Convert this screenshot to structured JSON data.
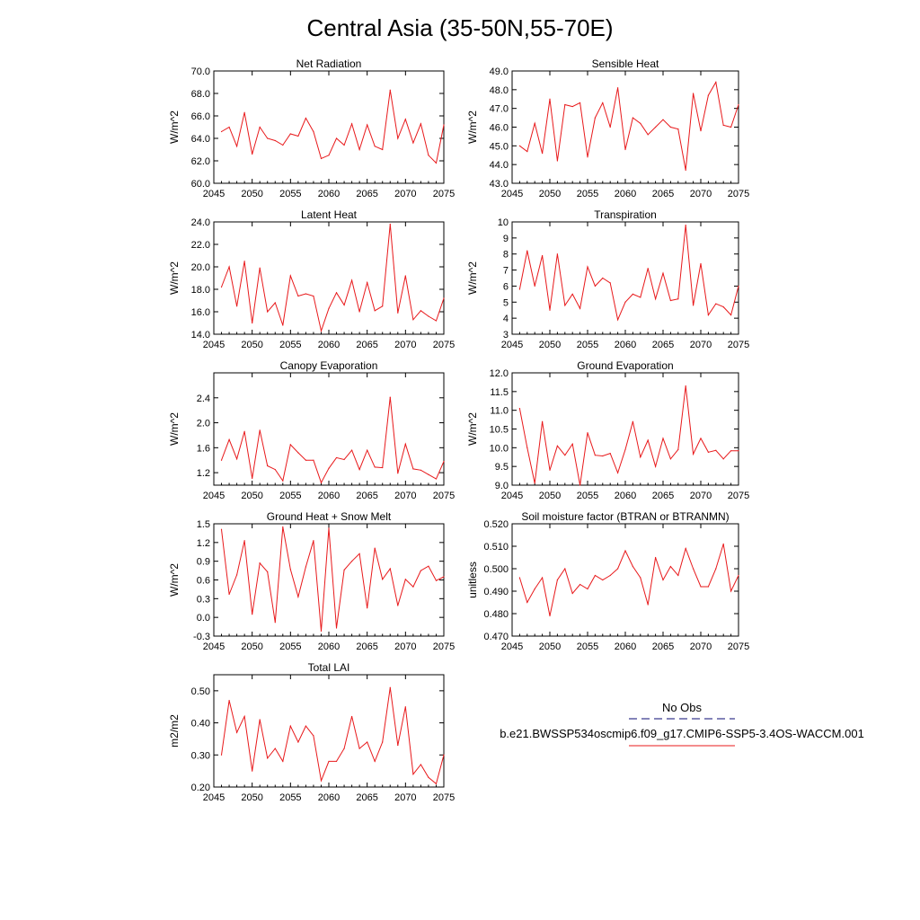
{
  "figure": {
    "title": "Central Asia (35-50N,55-70E)",
    "legend": {
      "obs_label": "No Obs",
      "obs_color": "#3b3b8f",
      "model_label": "b.e21.BWSSP534oscmip6.f09_g17.CMIP6-SSP5-3.4OS-WACCM.001",
      "model_color": "#e8191b"
    },
    "line_color": "#e8191b"
  },
  "chart_data": [
    {
      "type": "line",
      "title": "Net Radiation",
      "ylabel": "W/m^2",
      "xlim": [
        2045,
        2075
      ],
      "ylim": [
        60.0,
        70.0
      ],
      "xticks": [
        "2045",
        "2050",
        "2055",
        "2060",
        "2065",
        "2070",
        "2075"
      ],
      "yticks": [
        "60.0",
        "62.0",
        "64.0",
        "66.0",
        "68.0",
        "70.0"
      ],
      "x": [
        2046,
        2047,
        2048,
        2049,
        2050,
        2051,
        2052,
        2053,
        2054,
        2055,
        2056,
        2057,
        2058,
        2059,
        2060,
        2061,
        2062,
        2063,
        2064,
        2065,
        2066,
        2067,
        2068,
        2069,
        2070,
        2071,
        2072,
        2073,
        2074,
        2075
      ],
      "values": [
        64.6,
        65.0,
        63.3,
        66.3,
        62.6,
        65.0,
        64.0,
        63.8,
        63.4,
        64.4,
        64.2,
        65.8,
        64.6,
        62.2,
        62.5,
        64.0,
        63.4,
        65.3,
        63.0,
        65.2,
        63.3,
        63.0,
        68.3,
        64.0,
        65.7,
        63.6,
        65.3,
        62.5,
        61.8,
        65.2
      ]
    },
    {
      "type": "line",
      "title": "Sensible Heat",
      "ylabel": "W/m^2",
      "xlim": [
        2045,
        2075
      ],
      "ylim": [
        43.0,
        49.0
      ],
      "xticks": [
        "2045",
        "2050",
        "2055",
        "2060",
        "2065",
        "2070",
        "2075"
      ],
      "yticks": [
        "43.0",
        "44.0",
        "45.0",
        "46.0",
        "47.0",
        "48.0",
        "49.0"
      ],
      "x": [
        2046,
        2047,
        2048,
        2049,
        2050,
        2051,
        2052,
        2053,
        2054,
        2055,
        2056,
        2057,
        2058,
        2059,
        2060,
        2061,
        2062,
        2063,
        2064,
        2065,
        2066,
        2067,
        2068,
        2069,
        2070,
        2071,
        2072,
        2073,
        2074,
        2075
      ],
      "values": [
        45.0,
        44.7,
        46.2,
        44.6,
        47.5,
        44.2,
        47.2,
        47.1,
        47.3,
        44.4,
        46.5,
        47.3,
        46.0,
        48.1,
        44.8,
        46.5,
        46.2,
        45.6,
        46.0,
        46.4,
        46.0,
        45.9,
        43.7,
        47.8,
        45.8,
        47.7,
        48.4,
        46.1,
        46.0,
        47.2
      ]
    },
    {
      "type": "line",
      "title": "Latent Heat",
      "ylabel": "W/m^2",
      "xlim": [
        2045,
        2075
      ],
      "ylim": [
        14.0,
        24.0
      ],
      "xticks": [
        "2045",
        "2050",
        "2055",
        "2060",
        "2065",
        "2070",
        "2075"
      ],
      "yticks": [
        "14.0",
        "16.0",
        "18.0",
        "20.0",
        "22.0",
        "24.0"
      ],
      "x": [
        2046,
        2047,
        2048,
        2049,
        2050,
        2051,
        2052,
        2053,
        2054,
        2055,
        2056,
        2057,
        2058,
        2059,
        2060,
        2061,
        2062,
        2063,
        2064,
        2065,
        2066,
        2067,
        2068,
        2069,
        2070,
        2071,
        2072,
        2073,
        2074,
        2075
      ],
      "values": [
        18.2,
        20.0,
        16.5,
        20.5,
        15.0,
        19.9,
        16.0,
        16.8,
        14.8,
        19.2,
        17.4,
        17.6,
        17.4,
        14.3,
        16.3,
        17.7,
        16.6,
        18.8,
        16.0,
        18.6,
        16.1,
        16.5,
        23.8,
        15.9,
        19.2,
        15.3,
        16.1,
        15.6,
        15.2,
        17.2
      ]
    },
    {
      "type": "line",
      "title": "Transpiration",
      "ylabel": "W/m^2",
      "xlim": [
        2045,
        2075
      ],
      "ylim": [
        3,
        10
      ],
      "xticks": [
        "2045",
        "2050",
        "2055",
        "2060",
        "2065",
        "2070",
        "2075"
      ],
      "yticks": [
        "3",
        "4",
        "5",
        "6",
        "7",
        "8",
        "9",
        "10"
      ],
      "x": [
        2046,
        2047,
        2048,
        2049,
        2050,
        2051,
        2052,
        2053,
        2054,
        2055,
        2056,
        2057,
        2058,
        2059,
        2060,
        2061,
        2062,
        2063,
        2064,
        2065,
        2066,
        2067,
        2068,
        2069,
        2070,
        2071,
        2072,
        2073,
        2074,
        2075
      ],
      "values": [
        5.8,
        8.2,
        6.0,
        7.9,
        4.5,
        8.0,
        4.8,
        5.5,
        4.6,
        7.2,
        6.0,
        6.5,
        6.2,
        3.9,
        5.0,
        5.5,
        5.3,
        7.1,
        5.2,
        6.8,
        5.1,
        5.2,
        9.8,
        4.8,
        7.4,
        4.2,
        4.9,
        4.7,
        4.2,
        6.0
      ]
    },
    {
      "type": "line",
      "title": "Canopy Evaporation",
      "ylabel": "W/m^2",
      "xlim": [
        2045,
        2075
      ],
      "ylim": [
        1.0,
        2.8
      ],
      "xticks": [
        "2045",
        "2050",
        "2055",
        "2060",
        "2065",
        "2070",
        "2075"
      ],
      "yticks": [
        "1.2",
        "1.6",
        "2.0",
        "2.4"
      ],
      "x": [
        2046,
        2047,
        2048,
        2049,
        2050,
        2051,
        2052,
        2053,
        2054,
        2055,
        2056,
        2057,
        2058,
        2059,
        2060,
        2061,
        2062,
        2063,
        2064,
        2065,
        2066,
        2067,
        2068,
        2069,
        2070,
        2071,
        2072,
        2073,
        2074,
        2075
      ],
      "values": [
        1.4,
        1.73,
        1.42,
        1.86,
        1.11,
        1.88,
        1.31,
        1.25,
        1.07,
        1.65,
        1.52,
        1.4,
        1.4,
        1.04,
        1.27,
        1.44,
        1.41,
        1.56,
        1.25,
        1.56,
        1.29,
        1.28,
        2.41,
        1.19,
        1.66,
        1.26,
        1.24,
        1.17,
        1.1,
        1.38
      ]
    },
    {
      "type": "line",
      "title": "Ground Evaporation",
      "ylabel": "W/m^2",
      "xlim": [
        2045,
        2075
      ],
      "ylim": [
        9.0,
        12.0
      ],
      "xticks": [
        "2045",
        "2050",
        "2055",
        "2060",
        "2065",
        "2070",
        "2075"
      ],
      "yticks": [
        "9.0",
        "9.5",
        "10.0",
        "10.5",
        "11.0",
        "11.5",
        "12.0"
      ],
      "x": [
        2046,
        2047,
        2048,
        2049,
        2050,
        2051,
        2052,
        2053,
        2054,
        2055,
        2056,
        2057,
        2058,
        2059,
        2060,
        2061,
        2062,
        2063,
        2064,
        2065,
        2066,
        2067,
        2068,
        2069,
        2070,
        2071,
        2072,
        2073,
        2074,
        2075
      ],
      "values": [
        11.05,
        10.0,
        9.05,
        10.7,
        9.4,
        10.05,
        9.8,
        10.1,
        9.0,
        10.4,
        9.8,
        9.78,
        9.85,
        9.33,
        9.95,
        10.7,
        9.75,
        10.2,
        9.5,
        10.25,
        9.7,
        9.95,
        11.65,
        9.83,
        10.25,
        9.88,
        9.93,
        9.7,
        9.92,
        9.92
      ]
    },
    {
      "type": "line",
      "title": "Ground Heat + Snow Melt",
      "ylabel": "W/m^2",
      "xlim": [
        2045,
        2075
      ],
      "ylim": [
        -0.3,
        1.5
      ],
      "xticks": [
        "2045",
        "2050",
        "2055",
        "2060",
        "2065",
        "2070",
        "2075"
      ],
      "yticks": [
        "-0.3",
        "0.0",
        "0.3",
        "0.6",
        "0.9",
        "1.2",
        "1.5"
      ],
      "x": [
        2046,
        2047,
        2048,
        2049,
        2050,
        2051,
        2052,
        2053,
        2054,
        2055,
        2056,
        2057,
        2058,
        2059,
        2060,
        2061,
        2062,
        2063,
        2064,
        2065,
        2066,
        2067,
        2068,
        2069,
        2070,
        2071,
        2072,
        2073,
        2074,
        2075
      ],
      "values": [
        1.41,
        0.37,
        0.68,
        1.23,
        0.05,
        0.87,
        0.73,
        -0.08,
        1.45,
        0.77,
        0.33,
        0.81,
        1.23,
        -0.22,
        1.43,
        -0.17,
        0.76,
        0.9,
        1.02,
        0.15,
        1.11,
        0.61,
        0.78,
        0.19,
        0.61,
        0.49,
        0.75,
        0.82,
        0.59,
        0.65
      ]
    },
    {
      "type": "line",
      "title": "Soil moisture factor (BTRAN or BTRANMN)",
      "ylabel": "unitless",
      "xlim": [
        2045,
        2075
      ],
      "ylim": [
        0.47,
        0.52
      ],
      "xticks": [
        "2045",
        "2050",
        "2055",
        "2060",
        "2065",
        "2070",
        "2075"
      ],
      "yticks": [
        "0.470",
        "0.480",
        "0.490",
        "0.500",
        "0.510",
        "0.520"
      ],
      "x": [
        2046,
        2047,
        2048,
        2049,
        2050,
        2051,
        2052,
        2053,
        2054,
        2055,
        2056,
        2057,
        2058,
        2059,
        2060,
        2061,
        2062,
        2063,
        2064,
        2065,
        2066,
        2067,
        2068,
        2069,
        2070,
        2071,
        2072,
        2073,
        2074,
        2075
      ],
      "values": [
        0.496,
        0.485,
        0.491,
        0.496,
        0.479,
        0.495,
        0.5,
        0.489,
        0.493,
        0.491,
        0.497,
        0.495,
        0.497,
        0.5,
        0.508,
        0.501,
        0.496,
        0.484,
        0.505,
        0.495,
        0.501,
        0.497,
        0.509,
        0.5,
        0.492,
        0.492,
        0.5,
        0.511,
        0.49,
        0.497
      ]
    },
    {
      "type": "line",
      "title": "Total LAI",
      "ylabel": "m2/m2",
      "xlim": [
        2045,
        2075
      ],
      "ylim": [
        0.2,
        0.55
      ],
      "xticks": [
        "2045",
        "2050",
        "2055",
        "2060",
        "2065",
        "2070",
        "2075"
      ],
      "yticks": [
        "0.20",
        "0.30",
        "0.40",
        "0.50"
      ],
      "x": [
        2046,
        2047,
        2048,
        2049,
        2050,
        2051,
        2052,
        2053,
        2054,
        2055,
        2056,
        2057,
        2058,
        2059,
        2060,
        2061,
        2062,
        2063,
        2064,
        2065,
        2066,
        2067,
        2068,
        2069,
        2070,
        2071,
        2072,
        2073,
        2074,
        2075
      ],
      "values": [
        0.3,
        0.47,
        0.37,
        0.42,
        0.25,
        0.41,
        0.29,
        0.32,
        0.28,
        0.39,
        0.34,
        0.39,
        0.36,
        0.22,
        0.28,
        0.28,
        0.32,
        0.42,
        0.32,
        0.34,
        0.28,
        0.34,
        0.51,
        0.33,
        0.45,
        0.24,
        0.27,
        0.23,
        0.21,
        0.3
      ]
    }
  ]
}
